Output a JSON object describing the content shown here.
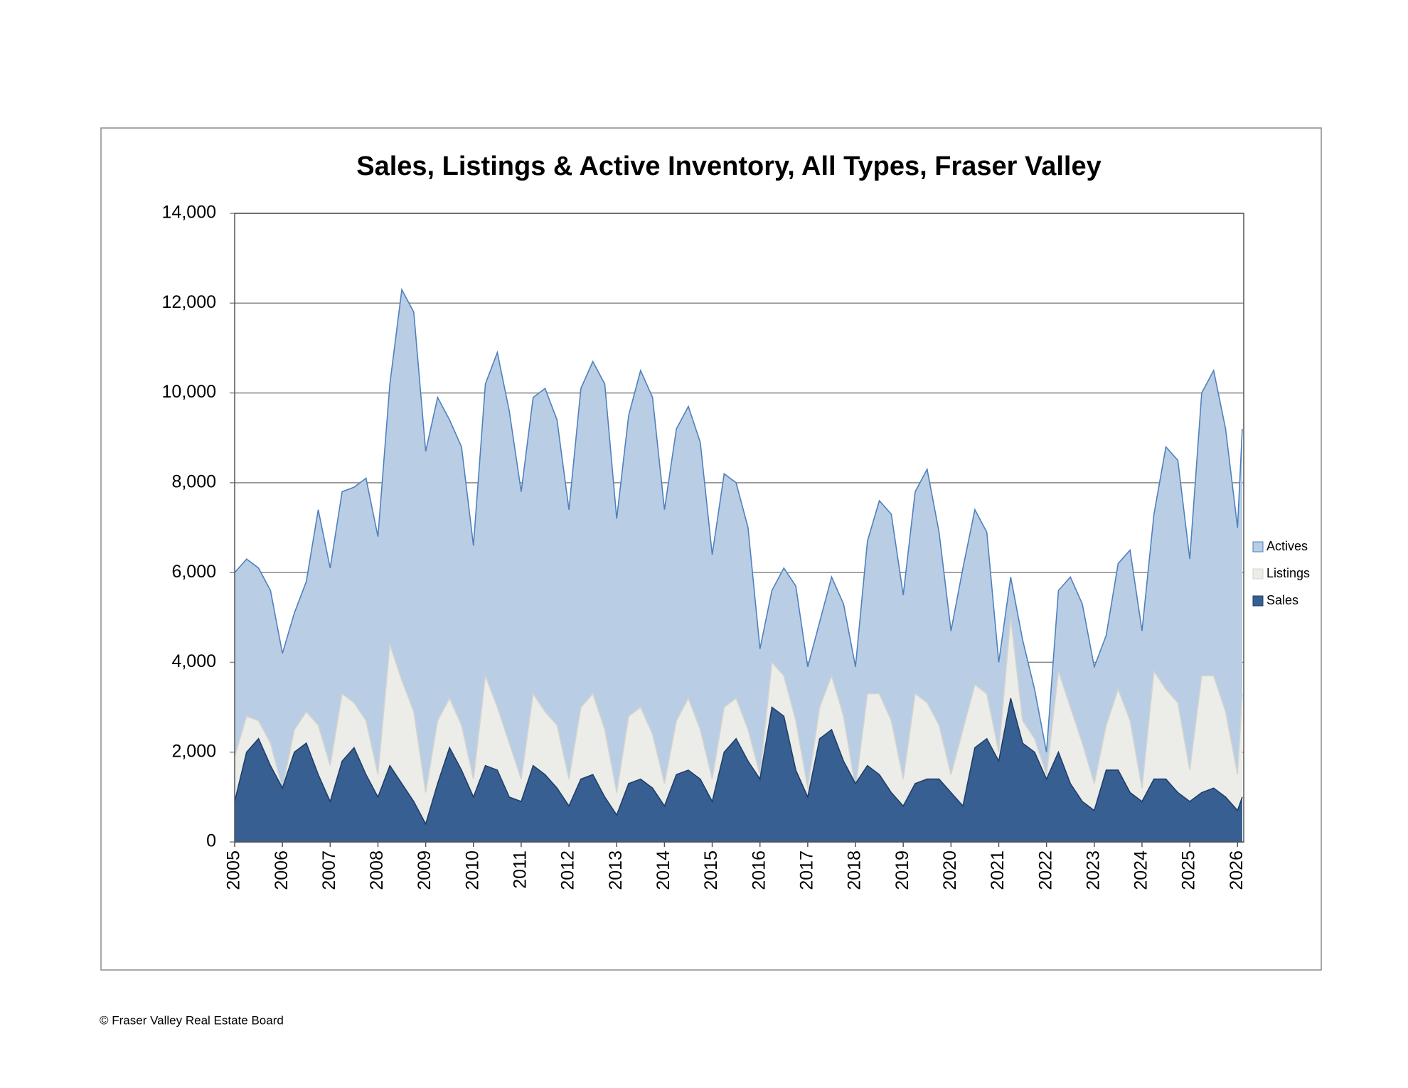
{
  "chart_data": {
    "type": "area",
    "title": "Sales, Listings & Active Inventory, All Types, Fraser Valley",
    "footer": "© Fraser Valley Real Estate Board",
    "x": [
      2005,
      2005.25,
      2005.5,
      2005.75,
      2006,
      2006.25,
      2006.5,
      2006.75,
      2007,
      2007.25,
      2007.5,
      2007.75,
      2008,
      2008.25,
      2008.5,
      2008.75,
      2009,
      2009.25,
      2009.5,
      2009.75,
      2010,
      2010.25,
      2010.5,
      2010.75,
      2011,
      2011.25,
      2011.5,
      2011.75,
      2012,
      2012.25,
      2012.5,
      2012.75,
      2013,
      2013.25,
      2013.5,
      2013.75,
      2014,
      2014.25,
      2014.5,
      2014.75,
      2015,
      2015.25,
      2015.5,
      2015.75,
      2016,
      2016.25,
      2016.5,
      2016.75,
      2017,
      2017.25,
      2017.5,
      2017.75,
      2018,
      2018.25,
      2018.5,
      2018.75,
      2019,
      2019.25,
      2019.5,
      2019.75,
      2020,
      2020.25,
      2020.5,
      2020.75,
      2021,
      2021.25,
      2021.5,
      2021.75,
      2022,
      2022.25,
      2022.5,
      2022.75,
      2023,
      2023.25,
      2023.5,
      2023.75,
      2024,
      2024.25,
      2024.5,
      2024.75,
      2025,
      2025.25,
      2025.5,
      2025.75,
      2026,
      2026.1
    ],
    "xlim": [
      2005,
      2026.13
    ],
    "xticks": [
      2005,
      2006,
      2007,
      2008,
      2009,
      2010,
      2011,
      2012,
      2013,
      2014,
      2015,
      2016,
      2017,
      2018,
      2019,
      2020,
      2021,
      2022,
      2023,
      2024,
      2025,
      2026
    ],
    "ylim": [
      0,
      14000
    ],
    "yticks": [
      0,
      {
        "value": 2000,
        "label": "2,000"
      },
      {
        "value": 4000,
        "label": "4,000"
      },
      {
        "value": 6000,
        "label": "6,000"
      },
      {
        "value": 8000,
        "label": "8,000"
      },
      {
        "value": 10000,
        "label": "10,000"
      },
      {
        "value": 12000,
        "label": "12,000"
      },
      {
        "value": 14000,
        "label": "14,000"
      }
    ],
    "grid": true,
    "legend": "right",
    "series": [
      {
        "name": "Actives",
        "color": "#b9cde5",
        "line_color": "#4f81bd",
        "values": [
          6000,
          6300,
          6100,
          5600,
          4200,
          5100,
          5800,
          7400,
          6100,
          7800,
          7900,
          8100,
          6800,
          10200,
          12300,
          11800,
          8700,
          9900,
          9400,
          8800,
          6600,
          10200,
          10900,
          9600,
          7800,
          9900,
          10100,
          9400,
          7400,
          10100,
          10700,
          10200,
          7200,
          9500,
          10500,
          9900,
          7400,
          9200,
          9700,
          8900,
          6400,
          8200,
          8000,
          7000,
          4300,
          5600,
          6100,
          5700,
          3900,
          4900,
          5900,
          5300,
          3900,
          6700,
          7600,
          7300,
          5500,
          7800,
          8300,
          6900,
          4700,
          6100,
          7400,
          6900,
          4000,
          5900,
          4500,
          3400,
          2000,
          5600,
          5900,
          5300,
          3900,
          4600,
          6200,
          6500,
          4700,
          7300,
          8800,
          8500,
          6300,
          10000,
          10500,
          9200,
          7000,
          9200
        ]
      },
      {
        "name": "Listings",
        "color": "#ecece8",
        "line_color": "#d4d4cf",
        "values": [
          1900,
          2800,
          2700,
          2200,
          1200,
          2500,
          2900,
          2600,
          1700,
          3300,
          3100,
          2700,
          1500,
          4400,
          3600,
          2900,
          1100,
          2700,
          3200,
          2600,
          1400,
          3700,
          3000,
          2200,
          1400,
          3300,
          2900,
          2600,
          1400,
          3000,
          3300,
          2500,
          1100,
          2800,
          3000,
          2400,
          1300,
          2700,
          3200,
          2500,
          1400,
          3000,
          3200,
          2500,
          1500,
          4000,
          3700,
          2700,
          1200,
          3000,
          3700,
          2800,
          1200,
          3300,
          3300,
          2700,
          1400,
          3300,
          3100,
          2600,
          1500,
          2500,
          3500,
          3300,
          2000,
          5000,
          2700,
          2300,
          1500,
          3800,
          3000,
          2200,
          1300,
          2600,
          3400,
          2700,
          1200,
          3800,
          3400,
          3100,
          1600,
          3700,
          3700,
          2900,
          1500,
          3300
        ]
      },
      {
        "name": "Sales",
        "color": "#375f92",
        "line_color": "#1f3f6a",
        "values": [
          900,
          2000,
          2300,
          1700,
          1200,
          2000,
          2200,
          1500,
          900,
          1800,
          2100,
          1500,
          1000,
          1700,
          1300,
          900,
          400,
          1300,
          2100,
          1600,
          1000,
          1700,
          1600,
          1000,
          900,
          1700,
          1500,
          1200,
          800,
          1400,
          1500,
          1000,
          600,
          1300,
          1400,
          1200,
          800,
          1500,
          1600,
          1400,
          900,
          2000,
          2300,
          1800,
          1400,
          3000,
          2800,
          1600,
          1000,
          2300,
          2500,
          1800,
          1300,
          1700,
          1500,
          1100,
          800,
          1300,
          1400,
          1400,
          1100,
          800,
          2100,
          2300,
          1800,
          3200,
          2200,
          2000,
          1400,
          2000,
          1300,
          900,
          700,
          1600,
          1600,
          1100,
          900,
          1400,
          1400,
          1100,
          900,
          1100,
          1200,
          1000,
          700,
          1000
        ]
      }
    ]
  }
}
